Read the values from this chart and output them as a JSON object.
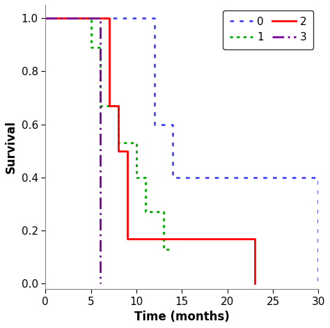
{
  "xlabel": "Time (months)",
  "ylabel": "Survival",
  "xlim": [
    0,
    30
  ],
  "ylim": [
    -0.02,
    1.05
  ],
  "xticks": [
    0,
    5,
    10,
    15,
    20,
    25,
    30
  ],
  "yticks": [
    0.0,
    0.2,
    0.4,
    0.6,
    0.8,
    1.0
  ],
  "curves": {
    "0": {
      "color": "#4444FF",
      "linestyle": "dotted_large",
      "linewidth": 2.0,
      "x": [
        0,
        6,
        7,
        11,
        12,
        14,
        29,
        30
      ],
      "y": [
        1.0,
        1.0,
        1.0,
        1.0,
        0.6,
        0.4,
        0.4,
        0.0
      ]
    },
    "1": {
      "color": "#00AA00",
      "linestyle": "dotted_small",
      "linewidth": 2.0,
      "x": [
        0,
        5,
        6,
        8,
        10,
        11,
        13,
        14
      ],
      "y": [
        1.0,
        0.89,
        0.67,
        0.53,
        0.4,
        0.27,
        0.13,
        0.13
      ]
    },
    "2": {
      "color": "#FF0000",
      "linestyle": "solid",
      "linewidth": 2.0,
      "x": [
        0,
        6,
        7,
        8,
        9,
        13,
        14,
        23,
        23
      ],
      "y": [
        1.0,
        1.0,
        0.67,
        0.5,
        0.17,
        0.17,
        0.17,
        0.17,
        0.0
      ]
    },
    "3": {
      "color": "#770099",
      "linestyle": "dashdot",
      "linewidth": 2.0,
      "x": [
        0,
        6,
        6
      ],
      "y": [
        1.0,
        1.0,
        0.0
      ]
    }
  },
  "legend_order": [
    "0",
    "1",
    "2",
    "3"
  ],
  "legend_colors": [
    "#4444FF",
    "#00AA00",
    "#FF0000",
    "#770099"
  ],
  "legend_styles": [
    "dotted_large",
    "dotted_small",
    "solid",
    "dashdot"
  ],
  "background_color": "#ffffff",
  "figsize": [
    4.74,
    4.71
  ],
  "dpi": 100
}
